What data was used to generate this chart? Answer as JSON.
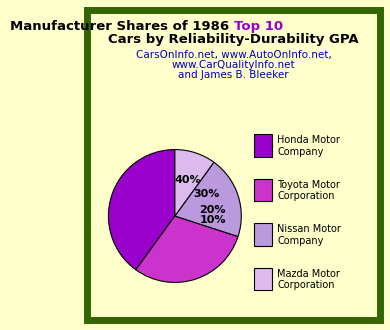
{
  "title_part1": "Manufacturer Shares of 1986 ",
  "title_highlight": "Top 10",
  "title_part2": "Cars by Reliability-Durability GPA",
  "subtitle_line1": "CarsOnInfo.net, www.AutoOnInfo.net,",
  "subtitle_line2": "www.CarQualityInfo.net",
  "subtitle_line3": "and James B. Bleeker",
  "slices": [
    40,
    30,
    20,
    10
  ],
  "pct_labels": [
    "40%",
    "30%",
    "20%",
    "10%"
  ],
  "legend_labels": [
    "Honda Motor\nCompany",
    "Toyota Motor\nCorporation",
    "Nissan Motor\nCompany",
    "Mazda Motor\nCorporation"
  ],
  "colors": [
    "#9900CC",
    "#CC33CC",
    "#BB99DD",
    "#DDBBEE"
  ],
  "startangle": 90,
  "background_color": "#FFFFCC",
  "border_color": "#336600",
  "title_color": "#000000",
  "highlight_color": "#9900CC",
  "subtitle_color": "#0000BB",
  "pct_font_size": 8,
  "title_font_size": 9.5,
  "subtitle_font_size": 7.5,
  "legend_font_size": 7
}
